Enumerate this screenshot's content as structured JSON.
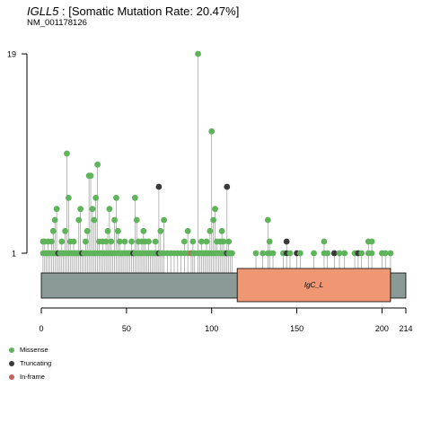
{
  "header": {
    "gene": "IGLL5",
    "separator": " : ",
    "rate_text": "[Somatic Mutation Rate: 20.47%]",
    "transcript": "NM_001178126"
  },
  "colors": {
    "missense": "#5fb35b",
    "truncating": "#3a3a3a",
    "inframe": "#c06358",
    "protein_bar": "#8a9b97",
    "domain": "#ef9672",
    "stem": "#9a9a9a"
  },
  "legend": [
    {
      "label": "Missense",
      "color": "#5fb35b"
    },
    {
      "label": "Truncating",
      "color": "#3a3a3a"
    },
    {
      "label": "In-frame",
      "color": "#c06358"
    }
  ],
  "chart_data": {
    "type": "lollipop",
    "protein_length": 214,
    "x_ticks": [
      "0",
      "50",
      "100",
      "150",
      "200",
      "214"
    ],
    "y_ticks": [
      "19",
      "1"
    ],
    "ylim": [
      1,
      19
    ],
    "domains": [
      {
        "name": "IgC_L",
        "start": 115,
        "end": 205
      }
    ],
    "mutations": [
      {
        "pos": 1,
        "count": 2,
        "type": "missense"
      },
      {
        "pos": 2,
        "count": 2,
        "type": "missense"
      },
      {
        "pos": 3,
        "count": 1,
        "type": "missense"
      },
      {
        "pos": 4,
        "count": 2,
        "type": "missense"
      },
      {
        "pos": 5,
        "count": 1,
        "type": "missense"
      },
      {
        "pos": 6,
        "count": 2,
        "type": "missense"
      },
      {
        "pos": 7,
        "count": 3,
        "type": "missense"
      },
      {
        "pos": 8,
        "count": 4,
        "type": "missense"
      },
      {
        "pos": 9,
        "count": 5,
        "type": "missense"
      },
      {
        "pos": 10,
        "count": 1,
        "type": "truncating"
      },
      {
        "pos": 11,
        "count": 1,
        "type": "missense"
      },
      {
        "pos": 12,
        "count": 2,
        "type": "missense"
      },
      {
        "pos": 13,
        "count": 1,
        "type": "missense"
      },
      {
        "pos": 14,
        "count": 3,
        "type": "missense"
      },
      {
        "pos": 15,
        "count": 10,
        "type": "missense"
      },
      {
        "pos": 16,
        "count": 6,
        "type": "missense"
      },
      {
        "pos": 17,
        "count": 2,
        "type": "missense"
      },
      {
        "pos": 18,
        "count": 1,
        "type": "missense"
      },
      {
        "pos": 19,
        "count": 2,
        "type": "missense"
      },
      {
        "pos": 20,
        "count": 1,
        "type": "missense"
      },
      {
        "pos": 21,
        "count": 1,
        "type": "missense"
      },
      {
        "pos": 22,
        "count": 4,
        "type": "missense"
      },
      {
        "pos": 23,
        "count": 5,
        "type": "missense"
      },
      {
        "pos": 24,
        "count": 1,
        "type": "truncating"
      },
      {
        "pos": 25,
        "count": 1,
        "type": "missense"
      },
      {
        "pos": 26,
        "count": 2,
        "type": "missense"
      },
      {
        "pos": 27,
        "count": 3,
        "type": "missense"
      },
      {
        "pos": 28,
        "count": 8,
        "type": "missense"
      },
      {
        "pos": 29,
        "count": 8,
        "type": "missense"
      },
      {
        "pos": 30,
        "count": 5,
        "type": "missense"
      },
      {
        "pos": 31,
        "count": 4,
        "type": "missense"
      },
      {
        "pos": 32,
        "count": 6,
        "type": "missense"
      },
      {
        "pos": 33,
        "count": 9,
        "type": "missense"
      },
      {
        "pos": 34,
        "count": 2,
        "type": "missense"
      },
      {
        "pos": 35,
        "count": 1,
        "type": "missense"
      },
      {
        "pos": 36,
        "count": 2,
        "type": "missense"
      },
      {
        "pos": 37,
        "count": 1,
        "type": "missense"
      },
      {
        "pos": 38,
        "count": 2,
        "type": "missense"
      },
      {
        "pos": 39,
        "count": 3,
        "type": "missense"
      },
      {
        "pos": 40,
        "count": 5,
        "type": "missense"
      },
      {
        "pos": 41,
        "count": 2,
        "type": "missense"
      },
      {
        "pos": 42,
        "count": 1,
        "type": "missense"
      },
      {
        "pos": 43,
        "count": 4,
        "type": "missense"
      },
      {
        "pos": 44,
        "count": 6,
        "type": "missense"
      },
      {
        "pos": 45,
        "count": 3,
        "type": "missense"
      },
      {
        "pos": 46,
        "count": 2,
        "type": "missense"
      },
      {
        "pos": 47,
        "count": 1,
        "type": "missense"
      },
      {
        "pos": 48,
        "count": 1,
        "type": "missense"
      },
      {
        "pos": 49,
        "count": 2,
        "type": "missense"
      },
      {
        "pos": 50,
        "count": 1,
        "type": "missense"
      },
      {
        "pos": 51,
        "count": 1,
        "type": "missense"
      },
      {
        "pos": 52,
        "count": 1,
        "type": "missense"
      },
      {
        "pos": 53,
        "count": 2,
        "type": "missense"
      },
      {
        "pos": 54,
        "count": 1,
        "type": "truncating"
      },
      {
        "pos": 55,
        "count": 6,
        "type": "missense"
      },
      {
        "pos": 56,
        "count": 4,
        "type": "missense"
      },
      {
        "pos": 57,
        "count": 2,
        "type": "missense"
      },
      {
        "pos": 58,
        "count": 1,
        "type": "missense"
      },
      {
        "pos": 59,
        "count": 2,
        "type": "missense"
      },
      {
        "pos": 60,
        "count": 3,
        "type": "missense"
      },
      {
        "pos": 61,
        "count": 2,
        "type": "missense"
      },
      {
        "pos": 62,
        "count": 1,
        "type": "missense"
      },
      {
        "pos": 63,
        "count": 2,
        "type": "missense"
      },
      {
        "pos": 64,
        "count": 1,
        "type": "missense"
      },
      {
        "pos": 65,
        "count": 1,
        "type": "missense"
      },
      {
        "pos": 66,
        "count": 1,
        "type": "missense"
      },
      {
        "pos": 67,
        "count": 2,
        "type": "missense"
      },
      {
        "pos": 68,
        "count": 1,
        "type": "missense"
      },
      {
        "pos": 69,
        "count": 7,
        "type": "truncating"
      },
      {
        "pos": 70,
        "count": 3,
        "type": "missense"
      },
      {
        "pos": 71,
        "count": 1,
        "type": "missense"
      },
      {
        "pos": 72,
        "count": 4,
        "type": "missense"
      },
      {
        "pos": 74,
        "count": 1,
        "type": "missense"
      },
      {
        "pos": 76,
        "count": 1,
        "type": "missense"
      },
      {
        "pos": 78,
        "count": 1,
        "type": "missense"
      },
      {
        "pos": 80,
        "count": 1,
        "type": "missense"
      },
      {
        "pos": 82,
        "count": 1,
        "type": "missense"
      },
      {
        "pos": 84,
        "count": 2,
        "type": "missense"
      },
      {
        "pos": 86,
        "count": 3,
        "type": "missense"
      },
      {
        "pos": 88,
        "count": 1,
        "type": "inframe"
      },
      {
        "pos": 89,
        "count": 2,
        "type": "missense"
      },
      {
        "pos": 90,
        "count": 1,
        "type": "missense"
      },
      {
        "pos": 92,
        "count": 19,
        "type": "missense"
      },
      {
        "pos": 93,
        "count": 1,
        "type": "missense"
      },
      {
        "pos": 94,
        "count": 2,
        "type": "missense"
      },
      {
        "pos": 95,
        "count": 1,
        "type": "missense"
      },
      {
        "pos": 96,
        "count": 1,
        "type": "missense"
      },
      {
        "pos": 97,
        "count": 2,
        "type": "missense"
      },
      {
        "pos": 98,
        "count": 1,
        "type": "missense"
      },
      {
        "pos": 99,
        "count": 3,
        "type": "missense"
      },
      {
        "pos": 100,
        "count": 12,
        "type": "missense"
      },
      {
        "pos": 101,
        "count": 4,
        "type": "missense"
      },
      {
        "pos": 102,
        "count": 5,
        "type": "missense"
      },
      {
        "pos": 103,
        "count": 2,
        "type": "missense"
      },
      {
        "pos": 104,
        "count": 1,
        "type": "missense"
      },
      {
        "pos": 105,
        "count": 2,
        "type": "missense"
      },
      {
        "pos": 106,
        "count": 3,
        "type": "missense"
      },
      {
        "pos": 107,
        "count": 2,
        "type": "missense"
      },
      {
        "pos": 108,
        "count": 1,
        "type": "missense"
      },
      {
        "pos": 109,
        "count": 7,
        "type": "truncating"
      },
      {
        "pos": 110,
        "count": 2,
        "type": "missense"
      },
      {
        "pos": 111,
        "count": 1,
        "type": "missense"
      },
      {
        "pos": 112,
        "count": 1,
        "type": "missense"
      },
      {
        "pos": 126,
        "count": 1,
        "type": "missense"
      },
      {
        "pos": 130,
        "count": 1,
        "type": "missense"
      },
      {
        "pos": 133,
        "count": 4,
        "type": "missense"
      },
      {
        "pos": 134,
        "count": 2,
        "type": "missense"
      },
      {
        "pos": 136,
        "count": 1,
        "type": "missense"
      },
      {
        "pos": 142,
        "count": 1,
        "type": "missense"
      },
      {
        "pos": 144,
        "count": 2,
        "type": "truncating"
      },
      {
        "pos": 146,
        "count": 1,
        "type": "missense"
      },
      {
        "pos": 150,
        "count": 1,
        "type": "truncating"
      },
      {
        "pos": 152,
        "count": 1,
        "type": "missense"
      },
      {
        "pos": 160,
        "count": 1,
        "type": "missense"
      },
      {
        "pos": 166,
        "count": 2,
        "type": "missense"
      },
      {
        "pos": 168,
        "count": 1,
        "type": "missense"
      },
      {
        "pos": 172,
        "count": 1,
        "type": "truncating"
      },
      {
        "pos": 175,
        "count": 1,
        "type": "missense"
      },
      {
        "pos": 178,
        "count": 1,
        "type": "missense"
      },
      {
        "pos": 184,
        "count": 1,
        "type": "missense"
      },
      {
        "pos": 186,
        "count": 1,
        "type": "truncating"
      },
      {
        "pos": 188,
        "count": 1,
        "type": "missense"
      },
      {
        "pos": 192,
        "count": 2,
        "type": "missense"
      },
      {
        "pos": 194,
        "count": 2,
        "type": "missense"
      },
      {
        "pos": 200,
        "count": 1,
        "type": "missense"
      },
      {
        "pos": 202,
        "count": 1,
        "type": "missense"
      },
      {
        "pos": 205,
        "count": 1,
        "type": "missense"
      }
    ]
  }
}
